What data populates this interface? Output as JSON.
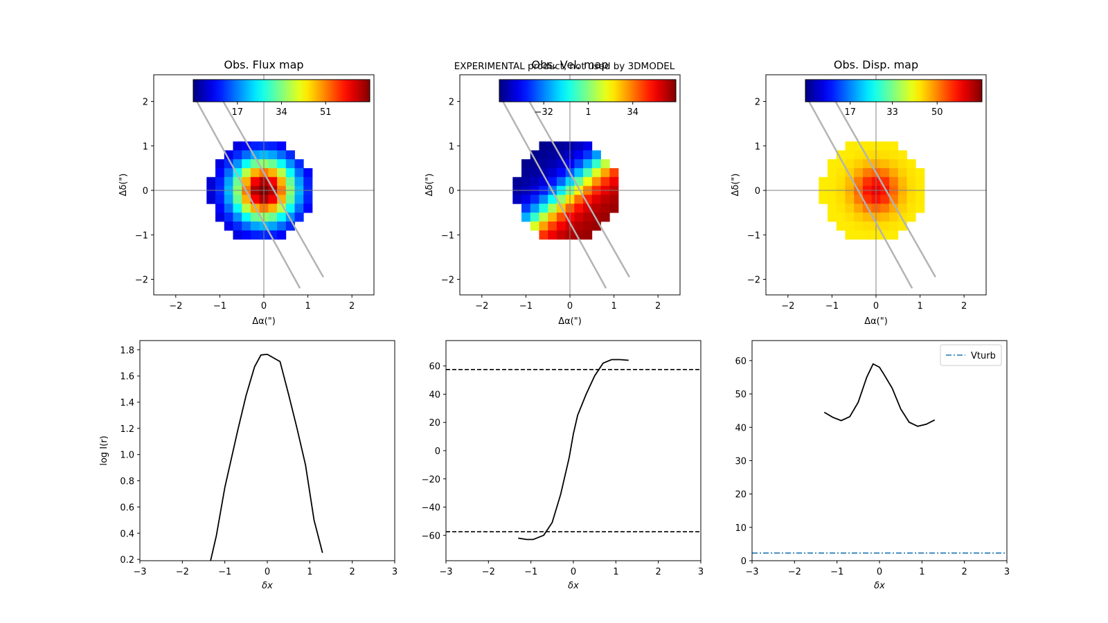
{
  "watermark": "EXPERIMENTAL product, not used by 3DMODEL",
  "colors": {
    "watermark": "#ff0000",
    "profile_line": "#000000",
    "slit": "#b3b3b3",
    "vturb": "#1f77b4",
    "crosshair": "#808080"
  },
  "chart_data": [
    {
      "type": "heatmap",
      "title": "Obs. Flux map",
      "xlabel": "Δα(\")",
      "ylabel": "Δδ(\")",
      "xlim": [
        -2.5,
        2.5
      ],
      "ylim": [
        -2.35,
        2.6
      ],
      "xticks": [
        -2,
        -1,
        0,
        1,
        2
      ],
      "yticks": [
        -2,
        -1,
        0,
        1,
        2
      ],
      "colorscale": "jet",
      "colorbar_ticks": [
        "17",
        "34",
        "51"
      ],
      "colorbar_range": [
        0,
        68
      ],
      "pixel_scale": 0.2,
      "center": [
        0,
        0
      ],
      "peak": 68,
      "sigma": 0.5,
      "floor": 2,
      "slit_lines": [
        [
          [
            -1.55,
            2.05
          ],
          [
            0.82,
            -2.2
          ]
        ],
        [
          [
            -0.95,
            2.05
          ],
          [
            1.35,
            -1.95
          ]
        ]
      ]
    },
    {
      "type": "heatmap",
      "title": "Obs. Vel. map",
      "xlabel": "Δα(\")",
      "ylabel": "Δδ(\")",
      "xlim": [
        -2.5,
        2.5
      ],
      "ylim": [
        -2.35,
        2.6
      ],
      "xticks": [
        -2,
        -1,
        0,
        1,
        2
      ],
      "yticks": [
        -2,
        -1,
        0,
        1,
        2
      ],
      "colorscale": "jet",
      "colorbar_ticks": [
        "−32",
        "1",
        "34"
      ],
      "colorbar_range": [
        -65,
        66
      ],
      "pixel_scale": 0.2,
      "velocity_amplitude": 64,
      "velocity_axis": [
        0.65,
        -0.76
      ],
      "slit_lines": [
        [
          [
            -1.55,
            2.05
          ],
          [
            0.82,
            -2.2
          ]
        ],
        [
          [
            -0.95,
            2.05
          ],
          [
            1.35,
            -1.95
          ]
        ]
      ]
    },
    {
      "type": "heatmap",
      "title": "Obs. Disp. map",
      "xlabel": "Δα(\")",
      "ylabel": "Δδ(\")",
      "xlim": [
        -2.5,
        2.5
      ],
      "ylim": [
        -2.35,
        2.6
      ],
      "xticks": [
        -2,
        -1,
        0,
        1,
        2
      ],
      "yticks": [
        -2,
        -1,
        0,
        1,
        2
      ],
      "colorscale": "jet",
      "colorbar_ticks": [
        "17",
        "33",
        "50"
      ],
      "colorbar_range": [
        0,
        67
      ],
      "pixel_scale": 0.2,
      "disp_peak": 60,
      "disp_base": 43,
      "sigma": 0.35,
      "slit_lines": [
        [
          [
            -1.55,
            2.05
          ],
          [
            0.82,
            -2.2
          ]
        ],
        [
          [
            -0.95,
            2.05
          ],
          [
            1.35,
            -1.95
          ]
        ]
      ]
    },
    {
      "type": "line",
      "xlabel": "δx",
      "ylabel": "log I(r)",
      "xlim": [
        -3,
        3
      ],
      "ylim": [
        0.19,
        1.87
      ],
      "xticks": [
        -3,
        -2,
        -1,
        0,
        1,
        2,
        3
      ],
      "yticks": [
        "0.2",
        "0.4",
        "0.6",
        "0.8",
        "1.0",
        "1.2",
        "1.4",
        "1.6",
        "1.8"
      ],
      "series": [
        {
          "x": [
            -1.35,
            -1.2,
            -1.0,
            -0.7,
            -0.5,
            -0.3,
            -0.15,
            0.0,
            0.3,
            0.5,
            0.7,
            0.9,
            1.1,
            1.3
          ],
          "y": [
            0.17,
            0.38,
            0.75,
            1.18,
            1.45,
            1.67,
            1.76,
            1.765,
            1.71,
            1.46,
            1.2,
            0.92,
            0.5,
            0.25
          ]
        }
      ]
    },
    {
      "type": "line",
      "xlabel": "δx",
      "ylabel": "",
      "xlim": [
        -3,
        3
      ],
      "ylim": [
        -78,
        78
      ],
      "xticks": [
        -3,
        -2,
        -1,
        0,
        1,
        2,
        3
      ],
      "yticks": [
        -60,
        -40,
        -20,
        0,
        20,
        40,
        60
      ],
      "hlines": [
        57.5,
        -57.5
      ],
      "series": [
        {
          "x": [
            -1.3,
            -1.1,
            -0.95,
            -0.7,
            -0.5,
            -0.3,
            -0.1,
            0.0,
            0.1,
            0.3,
            0.5,
            0.7,
            0.9,
            1.1,
            1.3
          ],
          "y": [
            -62,
            -63,
            -63,
            -60,
            -51,
            -31,
            -5,
            12,
            25,
            40,
            53,
            62,
            64.5,
            64.5,
            64
          ]
        }
      ]
    },
    {
      "type": "line",
      "xlabel": "δx",
      "ylabel": "",
      "xlim": [
        -3,
        3
      ],
      "ylim": [
        0,
        66
      ],
      "xticks": [
        -3,
        -2,
        -1,
        0,
        1,
        2,
        3
      ],
      "yticks": [
        0,
        10,
        20,
        30,
        40,
        50,
        60
      ],
      "legend": {
        "label": "Vturb",
        "location": "top-right"
      },
      "vturb": 2.3,
      "series": [
        {
          "x": [
            -1.3,
            -1.1,
            -0.9,
            -0.7,
            -0.5,
            -0.3,
            -0.15,
            0.0,
            0.1,
            0.3,
            0.5,
            0.7,
            0.9,
            1.1,
            1.3
          ],
          "y": [
            44.5,
            43,
            42,
            43.2,
            47.5,
            55,
            59,
            58,
            56,
            51.7,
            45.5,
            41.5,
            40.3,
            40.9,
            42.2
          ]
        }
      ]
    }
  ]
}
